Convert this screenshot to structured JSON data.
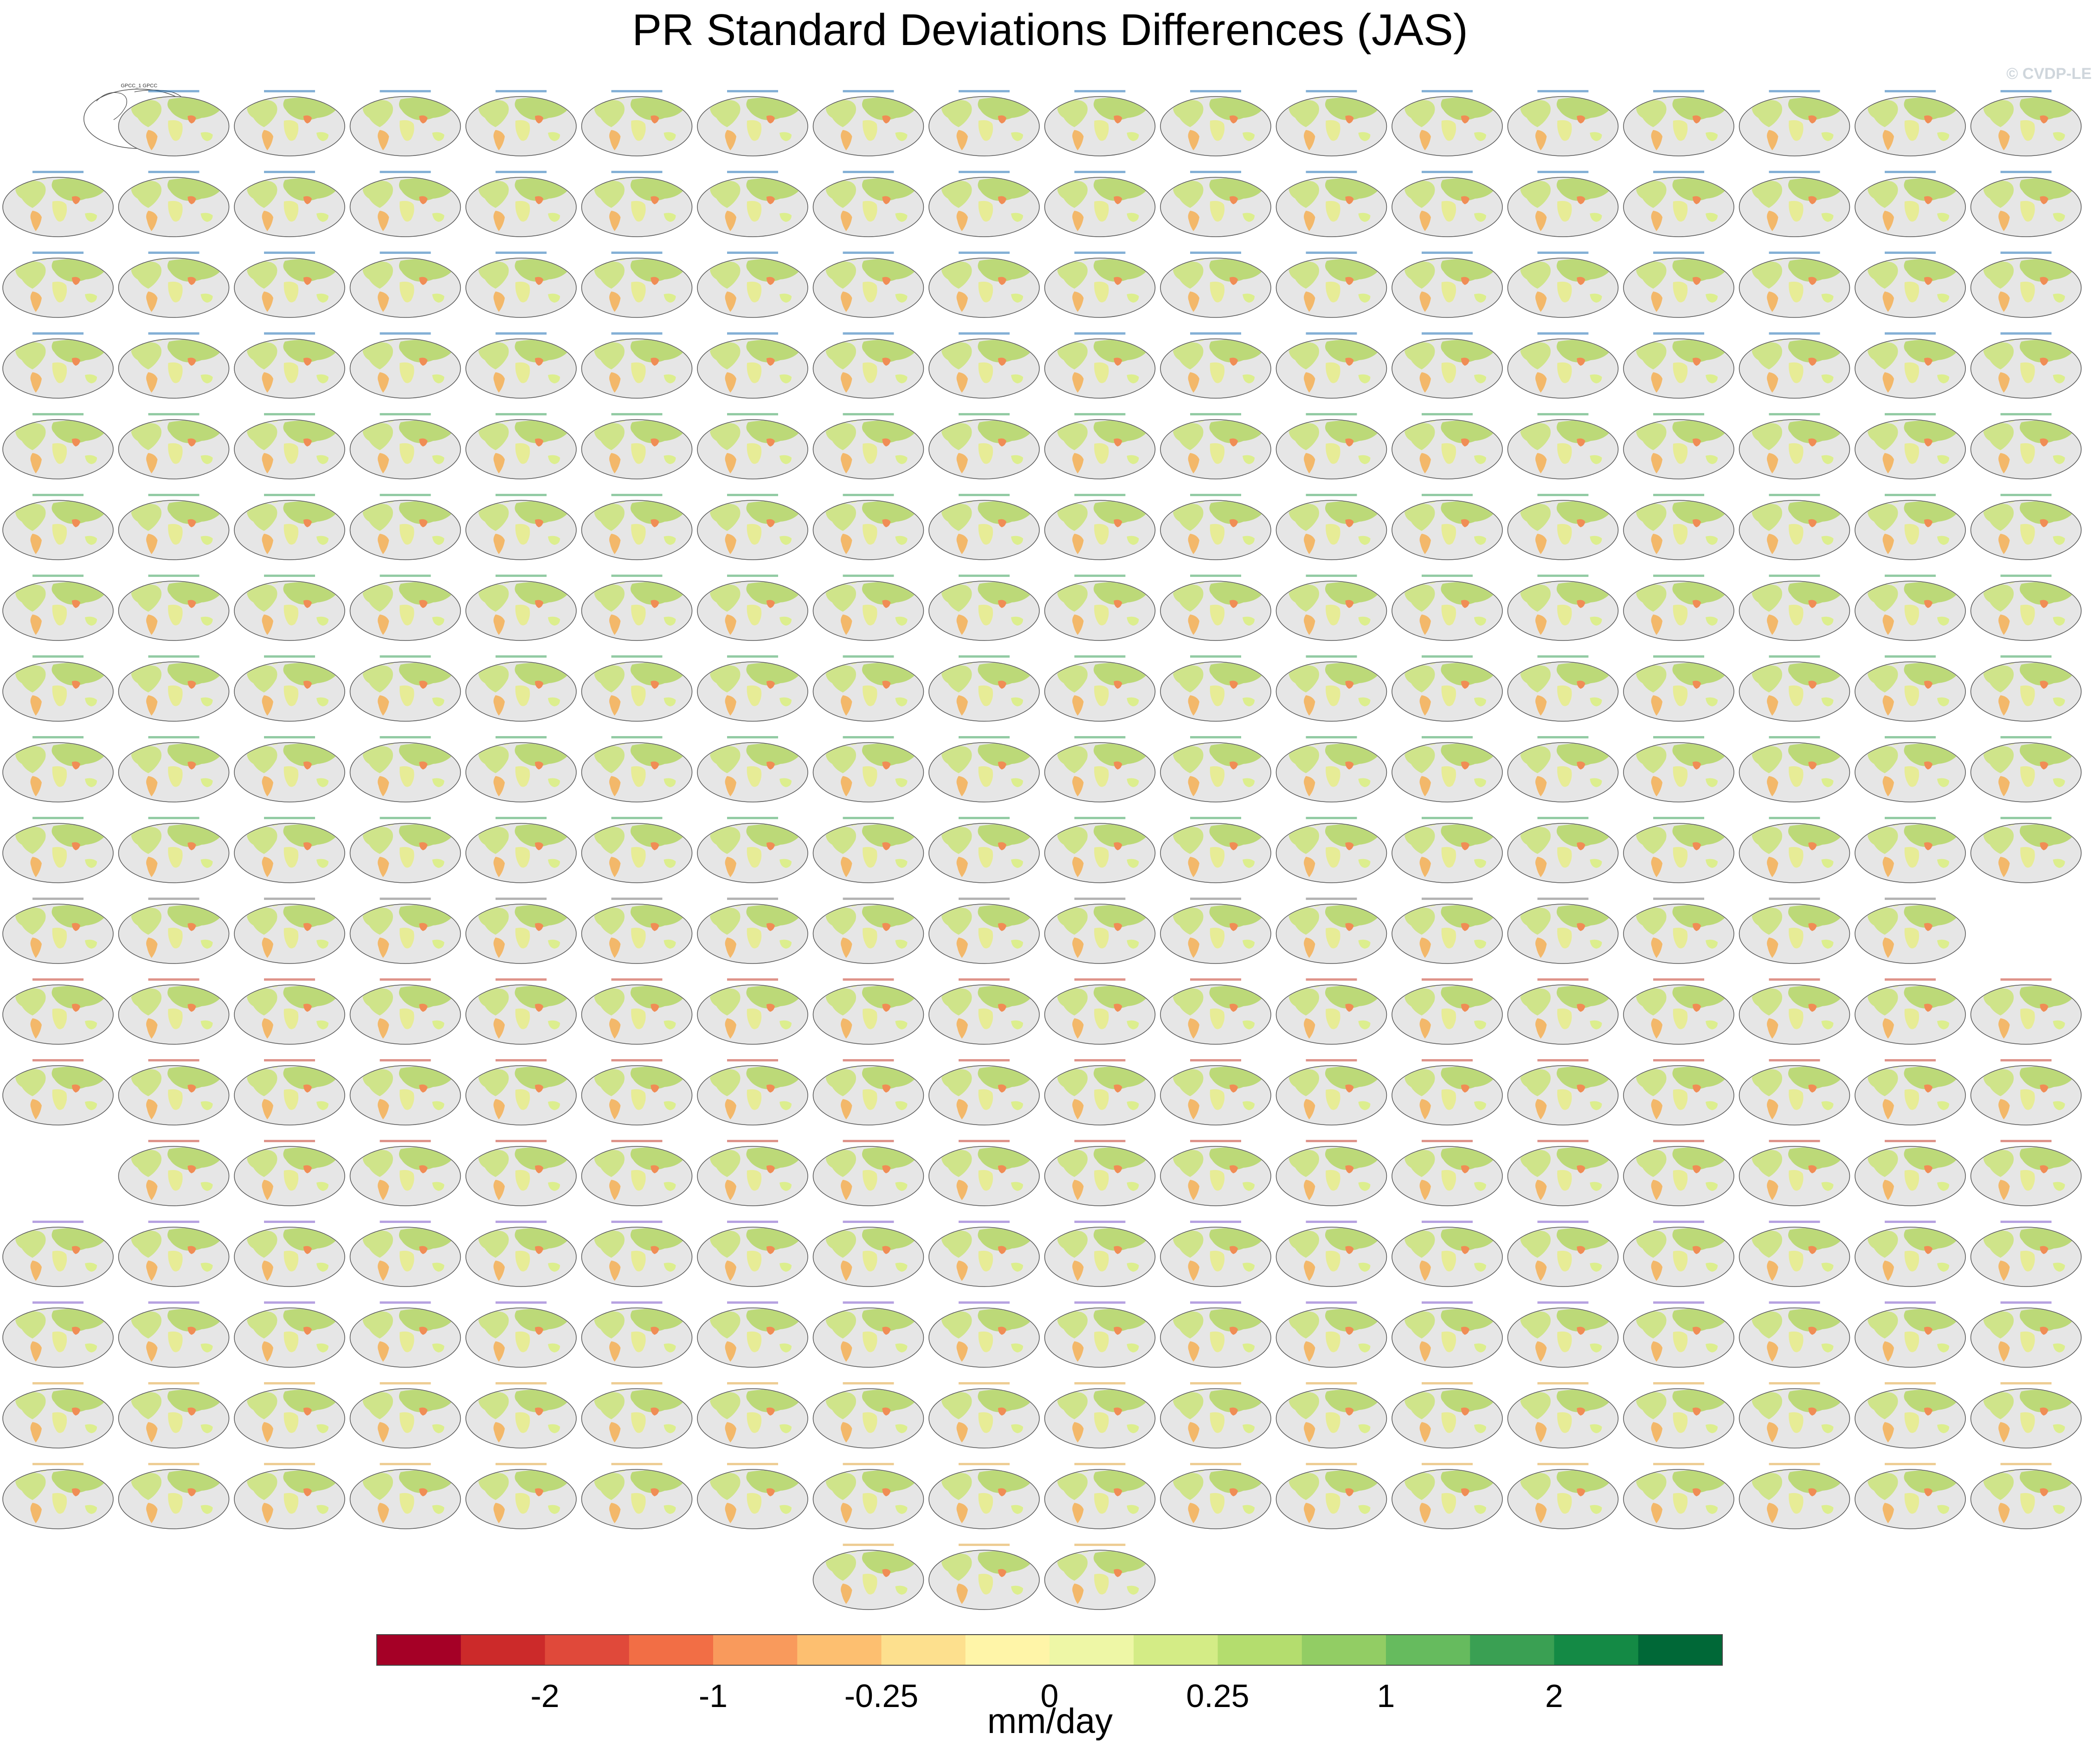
{
  "title": "PR Standard Deviations Differences (JAS)",
  "watermark": "© CVDP-LE",
  "chart_data": {
    "type": "heatmap",
    "description_of_panels": "small-multiple global maps of precipitation standard deviation differences, one per ensemble member",
    "row_panel_counts": [
      18,
      18,
      18,
      18,
      18,
      18,
      18,
      18,
      18,
      18,
      17,
      18,
      18,
      17,
      18,
      18,
      18,
      18,
      3
    ],
    "row_start_columns": [
      1,
      0,
      0,
      0,
      0,
      0,
      0,
      0,
      0,
      0,
      0,
      0,
      0,
      1,
      0,
      0,
      0,
      0,
      7
    ],
    "row_label_colors": [
      "#1f6fb5",
      "#1f6fb5",
      "#1f6fb5",
      "#1f6fb5",
      "#3aa05a",
      "#3aa05a",
      "#3aa05a",
      "#3aa05a",
      "#3aa05a",
      "#3aa05a",
      "#777777",
      "#c23b2a",
      "#c23b2a",
      "#c23b2a",
      "#7a55c8",
      "#7a55c8",
      "#e0a43c",
      "#e0a43c",
      "#e0a43c"
    ],
    "reference_panel_title": "GPCC_1 GPCC",
    "colorbar": {
      "unit": "mm/day",
      "tick_labels": [
        "-2",
        "-1",
        "-0.25",
        "0",
        "0.25",
        "1",
        "2"
      ],
      "colors": [
        "#a50026",
        "#cc2a2a",
        "#e0493a",
        "#f26e45",
        "#f99a5c",
        "#fdbf70",
        "#fde08e",
        "#fff5a8",
        "#eef7a6",
        "#d4ec86",
        "#b4dd6e",
        "#92cd64",
        "#66bb5e",
        "#3aa053",
        "#148a45",
        "#006837"
      ]
    }
  }
}
